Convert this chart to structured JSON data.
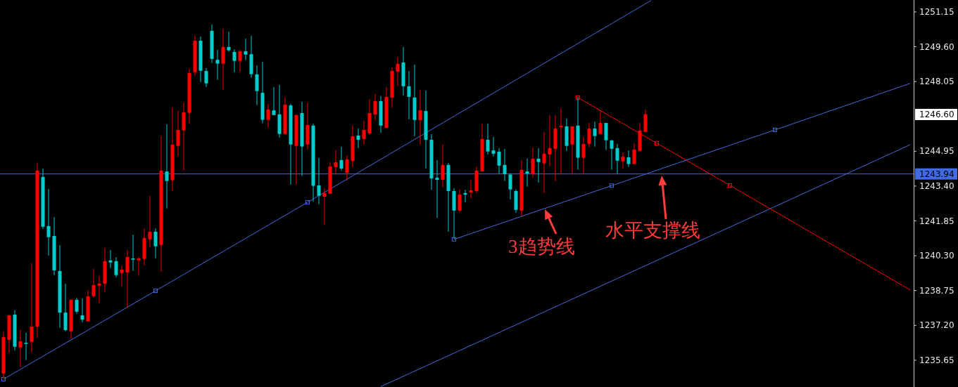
{
  "chart_data": {
    "type": "candlestick",
    "tick_labels": "y",
    "ylim": [
      1234.46,
      1251.68
    ],
    "yticks": [
      {
        "value": 1235.65,
        "label": "1235.65"
      },
      {
        "value": 1237.2,
        "label": "1237.20"
      },
      {
        "value": 1238.75,
        "label": "1238.75"
      },
      {
        "value": 1240.3,
        "label": "1240.30"
      },
      {
        "value": 1241.85,
        "label": "1241.85"
      },
      {
        "value": 1243.4,
        "label": "1243.40"
      },
      {
        "value": 1244.95,
        "label": "1244.95"
      },
      {
        "value": 1248.05,
        "label": "1248.05"
      },
      {
        "value": 1249.6,
        "label": "1249.60"
      },
      {
        "value": 1251.15,
        "label": "1251.15"
      }
    ],
    "categories": [
      null,
      null,
      null,
      null,
      null,
      null,
      null,
      null,
      null,
      null,
      null,
      null,
      null,
      null,
      null,
      null,
      null,
      null,
      null,
      null,
      null,
      null,
      null,
      null,
      null,
      null,
      null,
      null,
      null,
      null,
      null,
      null,
      null,
      null,
      null,
      null,
      null,
      null,
      null,
      null,
      null,
      null,
      null,
      null,
      null,
      null,
      null,
      null,
      null,
      null,
      null,
      null,
      null,
      null,
      null,
      null,
      null,
      null,
      null,
      null,
      null,
      null,
      null,
      null,
      null,
      null,
      null,
      null,
      null,
      null,
      null,
      null,
      null,
      null,
      null,
      null,
      null,
      null,
      null,
      null,
      null,
      null,
      null,
      null,
      null,
      null,
      null,
      null,
      null,
      null,
      null,
      null,
      null,
      null,
      null,
      null,
      null,
      null,
      null,
      null,
      null,
      null,
      null,
      null,
      null,
      null,
      null,
      null,
      null,
      null,
      null,
      null,
      null,
      null,
      null,
      null,
      null,
      null,
      null,
      null,
      null,
      null,
      null,
      null,
      null,
      null,
      null,
      null,
      null,
      null,
      null,
      null,
      null,
      null,
      null,
      null,
      null,
      null,
      null,
      null,
      null,
      null,
      null,
      null,
      null,
      null,
      null,
      null,
      null,
      null,
      null,
      null,
      null,
      null,
      null,
      null,
      null,
      null,
      null,
      null,
      null,
      null
    ],
    "ohlc": [
      [
        1235.06,
        1236.91,
        1234.87,
        1236.68
      ],
      [
        1236.56,
        1237.69,
        1235.97,
        1237.65
      ],
      [
        1237.68,
        1237.87,
        1236.08,
        1236.25
      ],
      [
        1236.22,
        1236.99,
        1235.35,
        1236.49
      ],
      [
        1236.43,
        1236.87,
        1235.66,
        1236.4
      ],
      [
        1236.47,
        1239.96,
        1236.02,
        1237.15
      ],
      [
        1237.15,
        1244.43,
        1236.65,
        1244.09
      ],
      [
        1243.81,
        1244.18,
        1241.49,
        1241.59
      ],
      [
        1241.62,
        1243.27,
        1240.31,
        1241.13
      ],
      [
        1241.18,
        1242.02,
        1239.43,
        1239.65
      ],
      [
        1239.62,
        1240.77,
        1237.1,
        1237.77
      ],
      [
        1237.77,
        1239.06,
        1236.94,
        1236.99
      ],
      [
        1236.94,
        1238.37,
        1236.62,
        1238.34
      ],
      [
        1238.34,
        1238.43,
        1237.72,
        1237.81
      ],
      [
        1237.65,
        1238.4,
        1237.34,
        1237.46
      ],
      [
        1237.38,
        1238.77,
        1237.38,
        1238.49
      ],
      [
        1238.5,
        1239.71,
        1238.44,
        1238.99
      ],
      [
        1238.97,
        1239.4,
        1238.19,
        1239.06
      ],
      [
        1239.06,
        1240.65,
        1238.69,
        1240.06
      ],
      [
        1240.09,
        1240.56,
        1239.75,
        1240.0
      ],
      [
        1240.06,
        1240.24,
        1239.35,
        1239.44
      ],
      [
        1239.53,
        1239.87,
        1238.94,
        1239.68
      ],
      [
        1239.56,
        1240.56,
        1238.0,
        1240.24
      ],
      [
        1240.18,
        1241.24,
        1239.63,
        1240.13
      ],
      [
        1240.1,
        1240.24,
        1239.41,
        1240.18
      ],
      [
        1240.16,
        1241.52,
        1239.88,
        1241.09
      ],
      [
        1241.03,
        1242.96,
        1240.66,
        1241.37
      ],
      [
        1241.37,
        1241.52,
        1240.19,
        1240.72
      ],
      [
        1240.78,
        1245.63,
        1239.6,
        1244.09
      ],
      [
        1244.05,
        1246.15,
        1242.41,
        1243.63
      ],
      [
        1243.66,
        1246.9,
        1243.19,
        1245.24
      ],
      [
        1245.19,
        1246.74,
        1244.72,
        1245.9
      ],
      [
        1245.88,
        1247.12,
        1244.1,
        1246.68
      ],
      [
        1246.66,
        1248.62,
        1246.16,
        1248.43
      ],
      [
        1248.47,
        1250.09,
        1248.31,
        1249.87
      ],
      [
        1249.87,
        1250.06,
        1248.03,
        1248.53
      ],
      [
        1248.52,
        1248.65,
        1247.81,
        1247.97
      ],
      [
        1250.31,
        1250.59,
        1248.88,
        1249.06
      ],
      [
        1249.02,
        1249.46,
        1248.13,
        1248.85
      ],
      [
        1248.85,
        1250.4,
        1247.69,
        1249.59
      ],
      [
        1249.59,
        1250.27,
        1249.38,
        1249.44
      ],
      [
        1249.37,
        1249.49,
        1248.47,
        1248.97
      ],
      [
        1248.97,
        1249.46,
        1248.47,
        1249.4
      ],
      [
        1249.4,
        1249.96,
        1249.0,
        1249.25
      ],
      [
        1249.27,
        1250.09,
        1248.22,
        1248.38
      ],
      [
        1248.37,
        1248.77,
        1247.0,
        1247.63
      ],
      [
        1247.55,
        1248.93,
        1246.19,
        1246.35
      ],
      [
        1246.35,
        1247.06,
        1246.0,
        1246.81
      ],
      [
        1246.77,
        1247.81,
        1246.56,
        1246.56
      ],
      [
        1246.59,
        1247.9,
        1245.56,
        1245.72
      ],
      [
        1245.72,
        1247.34,
        1245.69,
        1247.02
      ],
      [
        1246.99,
        1247.06,
        1243.47,
        1245.25
      ],
      [
        1245.19,
        1246.59,
        1243.47,
        1246.56
      ],
      [
        1246.65,
        1247.15,
        1243.85,
        1245.16
      ],
      [
        1245.25,
        1247.12,
        1245.03,
        1246.12
      ],
      [
        1246.09,
        1246.18,
        1242.72,
        1243.41
      ],
      [
        1243.43,
        1244.65,
        1242.6,
        1242.97
      ],
      [
        1242.93,
        1243.31,
        1241.66,
        1243.09
      ],
      [
        1243.06,
        1244.46,
        1243.06,
        1244.27
      ],
      [
        1244.24,
        1244.99,
        1243.96,
        1244.46
      ],
      [
        1244.56,
        1245.15,
        1244.09,
        1244.18
      ],
      [
        1243.99,
        1244.77,
        1243.65,
        1244.59
      ],
      [
        1244.52,
        1246.09,
        1244.24,
        1245.62
      ],
      [
        1245.65,
        1245.96,
        1245.09,
        1245.46
      ],
      [
        1245.49,
        1246.31,
        1245.24,
        1245.9
      ],
      [
        1245.74,
        1247.27,
        1245.68,
        1246.65
      ],
      [
        1246.59,
        1247.49,
        1246.34,
        1247.18
      ],
      [
        1247.18,
        1247.4,
        1245.77,
        1246.09
      ],
      [
        1245.99,
        1247.81,
        1245.99,
        1247.37
      ],
      [
        1247.34,
        1248.68,
        1246.9,
        1248.52
      ],
      [
        1248.49,
        1249.15,
        1247.87,
        1248.84
      ],
      [
        1248.9,
        1249.59,
        1247.43,
        1247.84
      ],
      [
        1247.84,
        1248.52,
        1246.37,
        1247.37
      ],
      [
        1247.34,
        1248.81,
        1245.62,
        1246.34
      ],
      [
        1246.34,
        1247.68,
        1245.24,
        1246.77
      ],
      [
        1246.74,
        1247.65,
        1244.18,
        1245.46
      ],
      [
        1245.46,
        1245.71,
        1243.24,
        1243.74
      ],
      [
        1243.77,
        1244.56,
        1241.99,
        1243.68
      ],
      [
        1243.68,
        1245.24,
        1243.34,
        1244.34
      ],
      [
        1244.34,
        1244.43,
        1241.37,
        1243.18
      ],
      [
        1243.18,
        1243.31,
        1241.06,
        1242.31
      ],
      [
        1242.31,
        1243.24,
        1242.24,
        1243.02
      ],
      [
        1243.09,
        1243.24,
        1242.68,
        1243.02
      ],
      [
        1243.12,
        1243.68,
        1242.87,
        1243.21
      ],
      [
        1243.18,
        1244.27,
        1243.09,
        1244.09
      ],
      [
        1244.05,
        1246.18,
        1244.05,
        1245.49
      ],
      [
        1245.46,
        1246.18,
        1244.81,
        1244.94
      ],
      [
        1244.99,
        1245.59,
        1244.72,
        1244.84
      ],
      [
        1244.93,
        1245.09,
        1243.94,
        1244.31
      ],
      [
        1244.34,
        1245.05,
        1243.63,
        1243.93
      ],
      [
        1243.91,
        1243.97,
        1242.81,
        1243.25
      ],
      [
        1243.18,
        1243.25,
        1242.21,
        1242.34
      ],
      [
        1242.31,
        1244.56,
        1242.05,
        1244.12
      ],
      [
        1244.05,
        1244.62,
        1243.38,
        1243.96
      ],
      [
        1243.94,
        1245.12,
        1243.78,
        1244.62
      ],
      [
        1244.62,
        1245.09,
        1243.56,
        1244.47
      ],
      [
        1244.41,
        1245.8,
        1243.1,
        1244.84
      ],
      [
        1244.81,
        1246.56,
        1244.28,
        1245.09
      ],
      [
        1245.06,
        1246.56,
        1243.63,
        1245.96
      ],
      [
        1246.03,
        1246.84,
        1243.92,
        1246.09
      ],
      [
        1246.06,
        1246.4,
        1244.97,
        1245.19
      ],
      [
        1245.25,
        1246.06,
        1243.94,
        1246.06
      ],
      [
        1246.09,
        1247.36,
        1244.13,
        1244.66
      ],
      [
        1244.66,
        1245.59,
        1243.94,
        1245.27
      ],
      [
        1245.28,
        1246.21,
        1245.13,
        1245.96
      ],
      [
        1245.96,
        1246.27,
        1245.16,
        1245.63
      ],
      [
        1245.72,
        1246.77,
        1245.72,
        1246.21
      ],
      [
        1246.21,
        1246.21,
        1245.0,
        1245.44
      ],
      [
        1245.43,
        1245.46,
        1244.13,
        1245.06
      ],
      [
        1245.09,
        1245.28,
        1243.94,
        1244.53
      ],
      [
        1244.5,
        1244.9,
        1244.19,
        1244.71
      ],
      [
        1244.68,
        1244.99,
        1244.25,
        1244.38
      ],
      [
        1244.38,
        1245.31,
        1244.38,
        1245.02
      ],
      [
        1244.97,
        1246.21,
        1244.91,
        1245.87
      ],
      [
        1245.81,
        1246.81,
        1245.81,
        1246.6
      ],
      null,
      null,
      null,
      null,
      null,
      null,
      null,
      null,
      null,
      null,
      null,
      null,
      null,
      null,
      null,
      null,
      null,
      null,
      null,
      null,
      null,
      null,
      null,
      null,
      null,
      null,
      null,
      null,
      null,
      null,
      null,
      null,
      null,
      null,
      null,
      null,
      null,
      null,
      null,
      null,
      null,
      null,
      null,
      null,
      null,
      null,
      null
    ],
    "colors": [
      "#ff0000",
      "#ff0000",
      "#00cccc",
      "#ff0000",
      "#00cccc",
      "#ff0000",
      "#ff0000",
      "#00cccc",
      "#00cccc",
      "#00cccc",
      "#00cccc",
      "#00cccc",
      "#ff0000",
      "#00cccc",
      "#00cccc",
      "#ff0000",
      "#ff0000",
      "#ff0000",
      "#ff0000",
      "#00cccc",
      "#00cccc",
      "#ff0000",
      "#ff0000",
      "#00cccc",
      "#ff0000",
      "#ff0000",
      "#ff0000",
      "#00cccc",
      "#ff0000",
      "#00cccc",
      "#ff0000",
      "#ff0000",
      "#ff0000",
      "#ff0000",
      "#ff0000",
      "#00cccc",
      "#00cccc",
      "#00cccc",
      "#00cccc",
      "#ff0000",
      "#00cccc",
      "#00cccc",
      "#ff0000",
      "#00cccc",
      "#00cccc",
      "#00cccc",
      "#00cccc",
      "#ff0000",
      "#00cccc",
      "#00cccc",
      "#ff0000",
      "#00cccc",
      "#ff0000",
      "#00cccc",
      "#ff0000",
      "#00cccc",
      "#00cccc",
      "#ff0000",
      "#ff0000",
      "#ff0000",
      "#00cccc",
      "#ff0000",
      "#ff0000",
      "#00cccc",
      "#ff0000",
      "#ff0000",
      "#ff0000",
      "#00cccc",
      "#ff0000",
      "#ff0000",
      "#ff0000",
      "#00cccc",
      "#00cccc",
      "#00cccc",
      "#ff0000",
      "#00cccc",
      "#00cccc",
      "#00cccc",
      "#ff0000",
      "#00cccc",
      "#00cccc",
      "#ff0000",
      "#00cccc",
      "#ff0000",
      "#ff0000",
      "#ff0000",
      "#00cccc",
      "#00cccc",
      "#00cccc",
      "#00cccc",
      "#00cccc",
      "#00cccc",
      "#ff0000",
      "#00cccc",
      "#ff0000",
      "#00cccc",
      "#ff0000",
      "#ff0000",
      "#ff0000",
      "#ff0000",
      "#00cccc",
      "#ff0000",
      "#00cccc",
      "#ff0000",
      "#ff0000",
      "#00cccc",
      "#ff0000",
      "#00cccc",
      "#00cccc",
      "#00cccc",
      "#ff0000",
      "#00cccc",
      "#ff0000",
      "#ff0000",
      "#ff0000",
      null,
      null,
      null,
      null,
      null,
      null,
      null,
      null,
      null,
      null,
      null,
      null,
      null,
      null,
      null,
      null,
      null,
      null,
      null,
      null,
      null,
      null,
      null,
      null,
      null,
      null,
      null,
      null,
      null,
      null,
      null,
      null,
      null,
      null,
      null,
      null,
      null,
      null,
      null,
      null,
      null,
      null,
      null,
      null,
      null,
      null,
      null
    ],
    "series": [
      {
        "type": "line",
        "color": "#4169e1",
        "line_style": "solid",
        "values": [
          1234.81,
          null,
          null,
          null,
          null,
          null,
          null,
          null,
          null,
          null,
          null,
          null,
          null,
          null,
          null,
          null,
          null,
          null,
          null,
          null,
          null,
          null,
          null,
          null,
          null,
          null,
          null,
          1238.74,
          null,
          null,
          null,
          null,
          null,
          null,
          null,
          null,
          null,
          null,
          null,
          null,
          null,
          null,
          null,
          null,
          null,
          null,
          null,
          null,
          null,
          null,
          null,
          null,
          null,
          null,
          1242.68,
          null,
          null,
          null,
          null,
          null,
          null,
          null,
          null,
          null,
          null,
          null,
          null,
          null,
          null,
          null,
          null,
          null,
          null,
          null,
          null,
          null,
          null,
          null,
          null,
          null,
          null,
          null,
          null,
          null,
          null,
          null,
          null,
          null,
          null,
          null,
          null,
          null,
          null,
          null,
          null,
          null,
          null,
          null,
          null,
          null,
          null,
          null,
          null,
          null,
          null,
          null,
          null,
          null,
          null,
          null,
          null,
          null,
          null,
          null,
          null,
          1251.66,
          null,
          null,
          null,
          null,
          null,
          null,
          null,
          null,
          null,
          null,
          null,
          null,
          null,
          null,
          null,
          null,
          null,
          null,
          null,
          null,
          null,
          null,
          null,
          null,
          null,
          null,
          null,
          null,
          null,
          null,
          null,
          null,
          null,
          null,
          null,
          null,
          null,
          null,
          null,
          null,
          null,
          null,
          null,
          null,
          null,
          null
        ]
      },
      {
        "type": "line",
        "color": "#4169e1",
        "line_style": "solid",
        "values": [
          null,
          null,
          null,
          null,
          null,
          null,
          null,
          null,
          null,
          null,
          null,
          null,
          null,
          null,
          null,
          null,
          null,
          null,
          null,
          null,
          null,
          null,
          null,
          null,
          null,
          null,
          null,
          null,
          null,
          null,
          null,
          null,
          null,
          null,
          null,
          null,
          null,
          null,
          null,
          null,
          null,
          null,
          null,
          null,
          null,
          null,
          null,
          null,
          null,
          null,
          null,
          null,
          null,
          null,
          null,
          null,
          null,
          null,
          null,
          null,
          null,
          null,
          null,
          null,
          null,
          null,
          null,
          1234.48,
          null,
          null,
          null,
          null,
          null,
          null,
          null,
          null,
          null,
          null,
          null,
          null,
          null,
          null,
          null,
          null,
          null,
          null,
          null,
          null,
          null,
          null,
          null,
          null,
          null,
          null,
          null,
          null,
          null,
          null,
          null,
          null,
          null,
          null,
          null,
          null,
          null,
          null,
          null,
          null,
          null,
          null,
          null,
          null,
          null,
          null,
          null,
          null,
          null,
          null,
          null,
          null,
          null,
          null,
          null,
          null,
          null,
          null,
          null,
          null,
          null,
          null,
          null,
          null,
          null,
          null,
          null,
          null,
          null,
          null,
          null,
          null,
          null,
          null,
          null,
          null,
          null,
          null,
          null,
          null,
          null,
          null,
          null,
          null,
          null,
          null,
          null,
          null,
          null,
          null,
          null,
          null,
          null,
          1245.24
        ]
      },
      {
        "type": "line",
        "color": "#4169e1",
        "line_style": "solid",
        "values": [
          null,
          null,
          null,
          null,
          null,
          null,
          null,
          null,
          null,
          null,
          null,
          null,
          null,
          null,
          null,
          null,
          null,
          null,
          null,
          null,
          null,
          null,
          null,
          null,
          null,
          null,
          null,
          null,
          null,
          null,
          null,
          null,
          null,
          null,
          null,
          null,
          null,
          null,
          null,
          null,
          null,
          null,
          null,
          null,
          null,
          null,
          null,
          null,
          null,
          null,
          null,
          null,
          null,
          null,
          null,
          null,
          null,
          null,
          null,
          null,
          null,
          null,
          null,
          null,
          null,
          null,
          null,
          null,
          null,
          null,
          null,
          null,
          null,
          null,
          null,
          null,
          null,
          null,
          null,
          null,
          1241.03,
          null,
          null,
          null,
          null,
          null,
          null,
          null,
          null,
          null,
          null,
          null,
          null,
          null,
          null,
          null,
          null,
          null,
          null,
          null,
          null,
          null,
          null,
          null,
          null,
          null,
          null,
          null,
          1243.42,
          null,
          null,
          null,
          null,
          null,
          null,
          null,
          null,
          null,
          null,
          null,
          null,
          null,
          null,
          null,
          null,
          null,
          null,
          null,
          null,
          null,
          null,
          null,
          null,
          null,
          null,
          null,
          null,
          1245.9,
          null,
          null,
          null,
          null,
          null,
          null,
          null,
          null,
          null,
          null,
          null,
          null,
          null,
          null,
          null,
          null,
          null,
          null,
          null,
          null,
          null,
          null,
          null,
          1247.97
        ]
      },
      {
        "type": "line",
        "color": "#ff0000",
        "line_style": "solid",
        "values": [
          null,
          null,
          null,
          null,
          null,
          null,
          null,
          null,
          null,
          null,
          null,
          null,
          null,
          null,
          null,
          null,
          null,
          null,
          null,
          null,
          null,
          null,
          null,
          null,
          null,
          null,
          null,
          null,
          null,
          null,
          null,
          null,
          null,
          null,
          null,
          null,
          null,
          null,
          null,
          null,
          null,
          null,
          null,
          null,
          null,
          null,
          null,
          null,
          null,
          null,
          null,
          null,
          null,
          null,
          null,
          null,
          null,
          null,
          null,
          null,
          null,
          null,
          null,
          null,
          null,
          null,
          null,
          null,
          null,
          null,
          null,
          null,
          null,
          null,
          null,
          null,
          null,
          null,
          null,
          null,
          null,
          null,
          null,
          null,
          null,
          null,
          null,
          null,
          null,
          null,
          null,
          null,
          null,
          null,
          null,
          null,
          null,
          null,
          null,
          null,
          null,
          null,
          1247.34,
          null,
          null,
          null,
          null,
          null,
          null,
          null,
          null,
          null,
          null,
          null,
          null,
          null,
          1245.31,
          null,
          null,
          null,
          null,
          null,
          null,
          null,
          null,
          null,
          null,
          null,
          null,
          1243.43,
          null,
          null,
          null,
          null,
          null,
          null,
          null,
          null,
          null,
          null,
          null,
          null,
          null,
          null,
          null,
          null,
          null,
          null,
          null,
          null,
          null,
          null,
          null,
          null,
          null,
          null,
          null,
          null,
          null,
          null,
          null,
          1238.78
        ]
      },
      {
        "type": "scatter",
        "color": "#4169e1",
        "marker": "square",
        "values": [
          1234.81,
          null,
          null,
          null,
          null,
          null,
          null,
          null,
          null,
          null,
          null,
          null,
          null,
          null,
          null,
          null,
          null,
          null,
          null,
          null,
          null,
          null,
          null,
          null,
          null,
          null,
          null,
          1238.74,
          null,
          null,
          null,
          null,
          null,
          null,
          null,
          null,
          null,
          null,
          null,
          null,
          null,
          null,
          null,
          null,
          null,
          null,
          null,
          null,
          null,
          null,
          null,
          null,
          null,
          null,
          1242.68,
          null,
          null,
          null,
          null,
          null,
          null,
          null,
          null,
          null,
          null,
          null,
          null,
          null,
          null,
          null,
          null,
          null,
          null,
          null,
          null,
          null,
          null,
          null,
          null,
          null,
          1241.03,
          null,
          null,
          null,
          null,
          null,
          null,
          null,
          null,
          null,
          null,
          null,
          null,
          null,
          null,
          null,
          null,
          null,
          null,
          null,
          null,
          null,
          null,
          null,
          null,
          null,
          null,
          null,
          1243.42,
          null,
          null,
          null,
          null,
          null,
          null,
          null,
          null,
          null,
          null,
          null,
          null,
          null,
          null,
          null,
          null,
          null,
          null,
          null,
          null,
          null,
          null,
          null,
          null,
          null,
          null,
          null,
          null,
          1245.9,
          null,
          null,
          null,
          null,
          null,
          null,
          null,
          null,
          null,
          null,
          null,
          null,
          null,
          null,
          null,
          null,
          null,
          null,
          null,
          null,
          null,
          null,
          null,
          null
        ]
      },
      {
        "type": "scatter",
        "color": "#ff0000",
        "marker": "square",
        "values": [
          null,
          null,
          null,
          null,
          null,
          null,
          null,
          null,
          null,
          null,
          null,
          null,
          null,
          null,
          null,
          null,
          null,
          null,
          null,
          null,
          null,
          null,
          null,
          null,
          null,
          null,
          null,
          null,
          null,
          null,
          null,
          null,
          null,
          null,
          null,
          null,
          null,
          null,
          null,
          null,
          null,
          null,
          null,
          null,
          null,
          null,
          null,
          null,
          null,
          null,
          null,
          null,
          null,
          null,
          null,
          null,
          null,
          null,
          null,
          null,
          null,
          null,
          null,
          null,
          null,
          null,
          null,
          null,
          null,
          null,
          null,
          null,
          null,
          null,
          null,
          null,
          null,
          null,
          null,
          null,
          null,
          null,
          null,
          null,
          null,
          null,
          null,
          null,
          null,
          null,
          null,
          null,
          null,
          null,
          null,
          null,
          null,
          null,
          null,
          null,
          null,
          null,
          1247.34,
          null,
          null,
          null,
          null,
          null,
          null,
          null,
          null,
          null,
          null,
          null,
          null,
          null,
          1245.31,
          null,
          null,
          null,
          null,
          null,
          null,
          null,
          null,
          null,
          null,
          null,
          null,
          1243.43,
          null,
          null,
          null,
          null,
          null,
          null,
          null,
          null,
          null,
          null,
          null,
          null,
          null,
          null,
          null,
          null,
          null,
          null,
          null,
          null,
          null,
          null,
          null,
          null,
          null,
          null,
          null,
          null,
          null,
          null,
          null,
          null
        ]
      }
    ],
    "ref_lines": [
      {
        "axis": "y",
        "value": 1243.94,
        "label": "1243.94",
        "color": "#4169e1",
        "line_style": "solid"
      }
    ],
    "annotations": [
      "3趋势线",
      "水平支撑线",
      "1246.60"
    ]
  }
}
